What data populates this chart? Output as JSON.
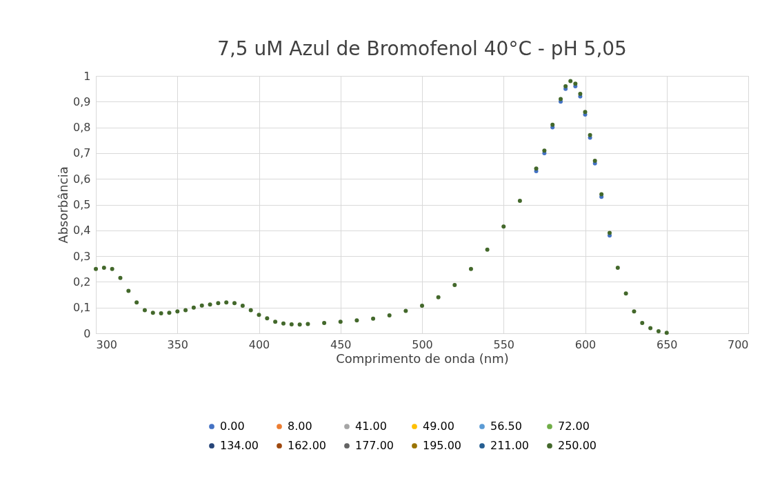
{
  "chart_data": {
    "type": "scatter",
    "title": "7,5 uM Azul de Bromofenol 40°C - pH 5,05",
    "xlabel": "Comprimento de onda (nm)",
    "ylabel": "Absorbância",
    "x": [
      300,
      305,
      310,
      315,
      320,
      325,
      330,
      335,
      340,
      345,
      350,
      355,
      360,
      365,
      370,
      375,
      380,
      385,
      390,
      395,
      400,
      405,
      410,
      415,
      420,
      425,
      430,
      440,
      450,
      460,
      470,
      480,
      490,
      500,
      510,
      520,
      530,
      540,
      550,
      560,
      570,
      575,
      580,
      585,
      588,
      591,
      594,
      597,
      600,
      603,
      606,
      610,
      615,
      620,
      625,
      630,
      635,
      640,
      645,
      650
    ],
    "series": [
      {
        "name": "0.00",
        "color": "#4472c4",
        "values": [
          null,
          null,
          null,
          null,
          null,
          null,
          null,
          null,
          null,
          null,
          null,
          null,
          null,
          null,
          null,
          null,
          null,
          null,
          null,
          null,
          null,
          null,
          null,
          null,
          null,
          null,
          null,
          null,
          null,
          null,
          null,
          null,
          null,
          null,
          null,
          null,
          null,
          null,
          null,
          null,
          0.63,
          0.7,
          0.8,
          0.9,
          0.95,
          null,
          0.96,
          0.92,
          0.85,
          0.76,
          0.66,
          0.53,
          0.38,
          null,
          null,
          null,
          null,
          null,
          null,
          null
        ]
      },
      {
        "name": "8.00",
        "color": "#ed7d31",
        "values": [
          null,
          null,
          null,
          null,
          null,
          null,
          null,
          null,
          null,
          null,
          null,
          null,
          null,
          null,
          null,
          null,
          null,
          null,
          null,
          null,
          null,
          null,
          null,
          null,
          null,
          null,
          null,
          null,
          null,
          null,
          null,
          null,
          null,
          null,
          null,
          null,
          null,
          null,
          null,
          null,
          null,
          null,
          null,
          null,
          null,
          null,
          null,
          null,
          null,
          null,
          null,
          null,
          null,
          null,
          null,
          null,
          null,
          null,
          null,
          null
        ]
      },
      {
        "name": "41.00",
        "color": "#a5a5a5",
        "values": [
          null,
          null,
          null,
          null,
          null,
          null,
          null,
          null,
          null,
          null,
          null,
          null,
          null,
          null,
          null,
          null,
          null,
          null,
          null,
          null,
          null,
          null,
          null,
          null,
          null,
          null,
          null,
          null,
          null,
          null,
          null,
          null,
          null,
          null,
          null,
          null,
          null,
          null,
          null,
          null,
          null,
          null,
          null,
          null,
          null,
          null,
          null,
          null,
          null,
          null,
          null,
          null,
          null,
          null,
          null,
          null,
          null,
          null,
          null,
          null
        ]
      },
      {
        "name": "49.00",
        "color": "#ffc000",
        "values": [
          null,
          null,
          null,
          null,
          null,
          null,
          null,
          null,
          null,
          null,
          null,
          null,
          null,
          null,
          null,
          null,
          null,
          null,
          null,
          null,
          null,
          null,
          null,
          null,
          null,
          null,
          null,
          null,
          null,
          null,
          null,
          null,
          null,
          null,
          null,
          null,
          null,
          null,
          null,
          null,
          null,
          null,
          null,
          null,
          null,
          null,
          null,
          null,
          null,
          null,
          null,
          null,
          null,
          null,
          null,
          null,
          null,
          null,
          null,
          null
        ]
      },
      {
        "name": "56.50",
        "color": "#5b9bd5",
        "values": [
          null,
          null,
          null,
          null,
          null,
          null,
          null,
          null,
          null,
          null,
          null,
          null,
          null,
          null,
          null,
          null,
          null,
          null,
          null,
          null,
          null,
          null,
          null,
          null,
          null,
          null,
          null,
          null,
          null,
          null,
          null,
          null,
          null,
          null,
          null,
          null,
          null,
          null,
          null,
          null,
          null,
          null,
          null,
          null,
          null,
          null,
          null,
          null,
          null,
          null,
          null,
          null,
          null,
          null,
          null,
          null,
          null,
          null,
          null,
          null
        ]
      },
      {
        "name": "72.00",
        "color": "#70ad47",
        "values": [
          null,
          null,
          null,
          null,
          null,
          null,
          null,
          null,
          null,
          null,
          null,
          null,
          null,
          null,
          null,
          null,
          null,
          null,
          null,
          null,
          null,
          null,
          null,
          null,
          null,
          null,
          null,
          null,
          null,
          null,
          null,
          null,
          null,
          null,
          null,
          null,
          null,
          null,
          null,
          null,
          null,
          null,
          null,
          null,
          null,
          null,
          null,
          null,
          null,
          null,
          null,
          null,
          null,
          null,
          null,
          null,
          null,
          null,
          null,
          null
        ]
      },
      {
        "name": "134.00",
        "color": "#264478",
        "values": [
          null,
          null,
          null,
          null,
          null,
          null,
          null,
          null,
          null,
          null,
          null,
          null,
          null,
          null,
          null,
          null,
          null,
          null,
          null,
          null,
          null,
          null,
          null,
          null,
          null,
          null,
          null,
          null,
          null,
          null,
          null,
          null,
          null,
          null,
          null,
          null,
          null,
          null,
          null,
          null,
          null,
          null,
          null,
          null,
          null,
          null,
          null,
          null,
          null,
          null,
          null,
          null,
          null,
          null,
          null,
          null,
          null,
          null,
          null,
          null
        ]
      },
      {
        "name": "162.00",
        "color": "#9e480e",
        "values": [
          null,
          null,
          null,
          null,
          null,
          null,
          null,
          null,
          null,
          null,
          null,
          null,
          null,
          null,
          null,
          null,
          null,
          null,
          null,
          null,
          null,
          null,
          null,
          null,
          null,
          null,
          null,
          null,
          null,
          null,
          null,
          null,
          null,
          null,
          null,
          null,
          null,
          null,
          null,
          null,
          null,
          null,
          null,
          null,
          null,
          null,
          null,
          null,
          null,
          null,
          null,
          null,
          null,
          null,
          null,
          null,
          null,
          null,
          null,
          null
        ]
      },
      {
        "name": "177.00",
        "color": "#636363",
        "values": [
          null,
          null,
          null,
          null,
          null,
          null,
          null,
          null,
          null,
          null,
          null,
          null,
          null,
          null,
          null,
          null,
          null,
          null,
          null,
          null,
          null,
          null,
          null,
          null,
          null,
          null,
          null,
          null,
          null,
          null,
          null,
          null,
          null,
          null,
          null,
          null,
          null,
          null,
          null,
          null,
          null,
          null,
          null,
          null,
          null,
          null,
          null,
          null,
          null,
          null,
          null,
          null,
          null,
          null,
          null,
          null,
          null,
          null,
          null,
          null
        ]
      },
      {
        "name": "195.00",
        "color": "#997300",
        "values": [
          null,
          null,
          null,
          null,
          null,
          null,
          null,
          null,
          null,
          null,
          null,
          null,
          null,
          null,
          null,
          null,
          null,
          null,
          null,
          null,
          null,
          null,
          null,
          null,
          null,
          null,
          null,
          null,
          null,
          null,
          null,
          null,
          null,
          null,
          null,
          null,
          null,
          null,
          null,
          null,
          null,
          null,
          null,
          null,
          null,
          null,
          null,
          null,
          null,
          null,
          null,
          null,
          null,
          null,
          null,
          null,
          null,
          null,
          null,
          null
        ]
      },
      {
        "name": "211.00",
        "color": "#255e91",
        "values": [
          null,
          null,
          null,
          null,
          null,
          null,
          null,
          null,
          null,
          null,
          null,
          null,
          null,
          null,
          null,
          null,
          null,
          null,
          null,
          null,
          null,
          null,
          null,
          null,
          null,
          null,
          null,
          null,
          null,
          null,
          null,
          null,
          null,
          null,
          null,
          null,
          null,
          null,
          null,
          null,
          null,
          null,
          null,
          null,
          null,
          null,
          null,
          null,
          null,
          null,
          null,
          null,
          null,
          null,
          null,
          null,
          null,
          null,
          null,
          null
        ]
      },
      {
        "name": "250.00",
        "color": "#43682b",
        "values": [
          0.25,
          0.255,
          0.25,
          0.215,
          0.165,
          0.12,
          0.09,
          0.08,
          0.078,
          0.08,
          0.085,
          0.09,
          0.1,
          0.108,
          0.112,
          0.117,
          0.12,
          0.117,
          0.107,
          0.09,
          0.072,
          0.058,
          0.045,
          0.038,
          0.035,
          0.034,
          0.036,
          0.04,
          0.045,
          0.05,
          0.057,
          0.07,
          0.087,
          0.107,
          0.14,
          0.188,
          0.25,
          0.325,
          0.415,
          0.515,
          0.64,
          0.71,
          0.81,
          0.91,
          0.96,
          0.98,
          0.97,
          0.93,
          0.86,
          0.77,
          0.67,
          0.54,
          0.39,
          0.255,
          0.155,
          0.085,
          0.04,
          0.02,
          0.008,
          0.002
        ]
      }
    ],
    "xlim": [
      300,
      700
    ],
    "xticks": [
      300,
      350,
      400,
      450,
      500,
      550,
      600,
      650,
      700
    ],
    "ylim": [
      0,
      1
    ],
    "yticks": [
      0,
      {
        "value": 0.1,
        "label": "0,1"
      },
      {
        "value": 0.2,
        "label": "0,2"
      },
      {
        "value": 0.3,
        "label": "0,3"
      },
      {
        "value": 0.4,
        "label": "0,4"
      },
      {
        "value": 0.5,
        "label": "0,5"
      },
      {
        "value": 0.6,
        "label": "0,6"
      },
      {
        "value": 0.7,
        "label": "0,7"
      },
      {
        "value": 0.8,
        "label": "0,8"
      },
      {
        "value": 0.9,
        "label": "0,9"
      },
      1
    ],
    "grid": true,
    "legend": "bottom",
    "marker": "circle"
  }
}
